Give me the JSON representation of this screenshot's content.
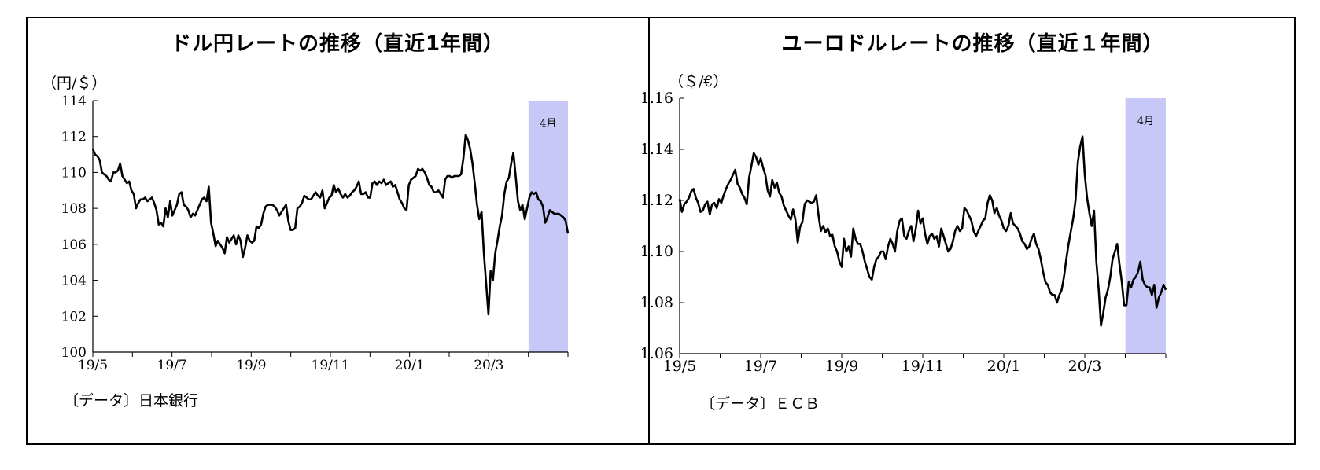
{
  "chart_data": [
    {
      "type": "line",
      "title": "ドル円レートの推移（直近1年間）",
      "ylabel": "（円/＄）",
      "ylim": [
        100,
        114
      ],
      "yticks": [
        "114",
        "112",
        "110",
        "108",
        "106",
        "104",
        "102",
        "100"
      ],
      "xticks": [
        "19/5",
        "19/7",
        "19/9",
        "19/11",
        "20/1",
        "20/3"
      ],
      "shaded_label": "4月",
      "shaded_color": "#c8c8f8",
      "source": "〔データ〕日本銀行",
      "series": [
        {
          "values": [
            111.3,
            111.0,
            110.9,
            110.7,
            110.0,
            109.9,
            109.8,
            109.6,
            109.5,
            110.0,
            110.0,
            110.1,
            110.5,
            109.8,
            109.6,
            109.4,
            109.5,
            109.0,
            108.8,
            108.0,
            108.3,
            108.5,
            108.5,
            108.6,
            108.4,
            108.5,
            108.6,
            108.3,
            107.9,
            107.1,
            107.2,
            107.0,
            108.0,
            107.5,
            108.4,
            107.6,
            107.9,
            108.2,
            108.8,
            108.9,
            108.2,
            108.1,
            107.9,
            107.5,
            107.7,
            107.6,
            107.9,
            108.2,
            108.5,
            108.6,
            108.4,
            109.2,
            107.2,
            106.6,
            105.9,
            106.2,
            106.0,
            105.8,
            105.5,
            106.4,
            106.1,
            106.3,
            106.5,
            106.0,
            106.5,
            106.2,
            105.3,
            105.8,
            106.5,
            106.2,
            106.1,
            106.2,
            107.0,
            106.9,
            107.1,
            107.7,
            108.1,
            108.2,
            108.2,
            108.2,
            108.1,
            107.9,
            107.6,
            107.8,
            108.0,
            108.2,
            107.3,
            106.8,
            106.8,
            106.9,
            108.0,
            108.1,
            108.3,
            108.7,
            108.6,
            108.5,
            108.5,
            108.7,
            108.9,
            108.7,
            108.6,
            109.0,
            108.0,
            108.3,
            108.6,
            108.7,
            109.3,
            108.9,
            109.1,
            108.8,
            108.6,
            108.8,
            108.6,
            108.7,
            108.9,
            109.0,
            109.2,
            109.5,
            108.8,
            108.8,
            108.9,
            108.6,
            108.6,
            109.4,
            109.5,
            109.3,
            109.5,
            109.4,
            109.6,
            109.3,
            109.4,
            109.5,
            109.2,
            109.3,
            108.9,
            108.5,
            108.3,
            108.0,
            107.9,
            109.3,
            109.6,
            109.7,
            109.8,
            110.2,
            110.1,
            110.2,
            110.0,
            109.7,
            109.3,
            109.2,
            108.9,
            108.9,
            109.0,
            108.8,
            108.6,
            109.6,
            109.8,
            109.8,
            109.7,
            109.8,
            109.8,
            109.8,
            109.9,
            110.8,
            112.1,
            111.8,
            111.3,
            110.5,
            109.4,
            108.2,
            107.4,
            107.8,
            105.5,
            103.8,
            102.1,
            104.5,
            104.0,
            105.5,
            106.2,
            107.0,
            107.6,
            108.8,
            109.5,
            109.7,
            110.5,
            111.1,
            109.8,
            108.4,
            107.9,
            108.2,
            107.4,
            108.0,
            108.6,
            108.9,
            108.8,
            108.9,
            108.5,
            108.4,
            108.1,
            107.2,
            107.5,
            107.9,
            107.8,
            107.7,
            107.7,
            107.7,
            107.6,
            107.5,
            107.3,
            106.6
          ]
        }
      ]
    },
    {
      "type": "line",
      "title": "ユーロドルレートの推移（直近１年間）",
      "ylabel": "（＄/€）",
      "ylim": [
        1.06,
        1.16
      ],
      "yticks": [
        "1.16",
        "1.14",
        "1.12",
        "1.10",
        "1.08",
        "1.06"
      ],
      "xticks": [
        "19/5",
        "19/7",
        "19/9",
        "19/11",
        "20/1",
        "20/3"
      ],
      "shaded_label": "4月",
      "shaded_color": "#c8c8f8",
      "source": "〔データ〕ＥＣＢ",
      "series": [
        {
          "values": [
            1.1205,
            1.1155,
            1.1185,
            1.1195,
            1.121,
            1.1235,
            1.1245,
            1.121,
            1.119,
            1.1155,
            1.116,
            1.1185,
            1.1195,
            1.1145,
            1.1185,
            1.119,
            1.117,
            1.1205,
            1.119,
            1.122,
            1.1245,
            1.1265,
            1.128,
            1.13,
            1.132,
            1.1265,
            1.125,
            1.1225,
            1.121,
            1.1185,
            1.129,
            1.1335,
            1.1385,
            1.137,
            1.134,
            1.1365,
            1.133,
            1.13,
            1.124,
            1.1215,
            1.128,
            1.125,
            1.127,
            1.123,
            1.1215,
            1.118,
            1.116,
            1.114,
            1.1125,
            1.1165,
            1.1125,
            1.1035,
            1.1095,
            1.1115,
            1.1185,
            1.12,
            1.1195,
            1.119,
            1.1195,
            1.122,
            1.114,
            1.108,
            1.11,
            1.1075,
            1.109,
            1.106,
            1.1065,
            1.102,
            1.1,
            1.096,
            1.094,
            1.105,
            1.1,
            1.102,
            1.098,
            1.109,
            1.105,
            1.103,
            1.103,
            1.1,
            1.096,
            1.093,
            1.09,
            1.089,
            1.094,
            1.097,
            1.098,
            1.1,
            1.1,
            1.097,
            1.102,
            1.105,
            1.103,
            1.1,
            1.108,
            1.112,
            1.113,
            1.106,
            1.105,
            1.108,
            1.11,
            1.104,
            1.109,
            1.116,
            1.111,
            1.113,
            1.107,
            1.103,
            1.106,
            1.107,
            1.105,
            1.106,
            1.102,
            1.109,
            1.106,
            1.103,
            1.1,
            1.101,
            1.104,
            1.108,
            1.11,
            1.108,
            1.109,
            1.117,
            1.116,
            1.114,
            1.112,
            1.108,
            1.106,
            1.108,
            1.11,
            1.112,
            1.113,
            1.119,
            1.122,
            1.12,
            1.115,
            1.117,
            1.114,
            1.112,
            1.109,
            1.108,
            1.11,
            1.115,
            1.111,
            1.11,
            1.109,
            1.107,
            1.104,
            1.103,
            1.101,
            1.102,
            1.105,
            1.107,
            1.103,
            1.101,
            1.097,
            1.092,
            1.088,
            1.087,
            1.084,
            1.083,
            1.083,
            1.08,
            1.083,
            1.085,
            1.09,
            1.097,
            1.103,
            1.108,
            1.113,
            1.12,
            1.135,
            1.141,
            1.145,
            1.13,
            1.121,
            1.115,
            1.11,
            1.116,
            1.096,
            1.085,
            1.071,
            1.076,
            1.082,
            1.085,
            1.09,
            1.097,
            1.1,
            1.103,
            1.095,
            1.088,
            1.079,
            1.079,
            1.088,
            1.086,
            1.089,
            1.09,
            1.092,
            1.096,
            1.089,
            1.087,
            1.086,
            1.086,
            1.083,
            1.087,
            1.078,
            1.082,
            1.084,
            1.087,
            1.085
          ]
        }
      ]
    }
  ]
}
